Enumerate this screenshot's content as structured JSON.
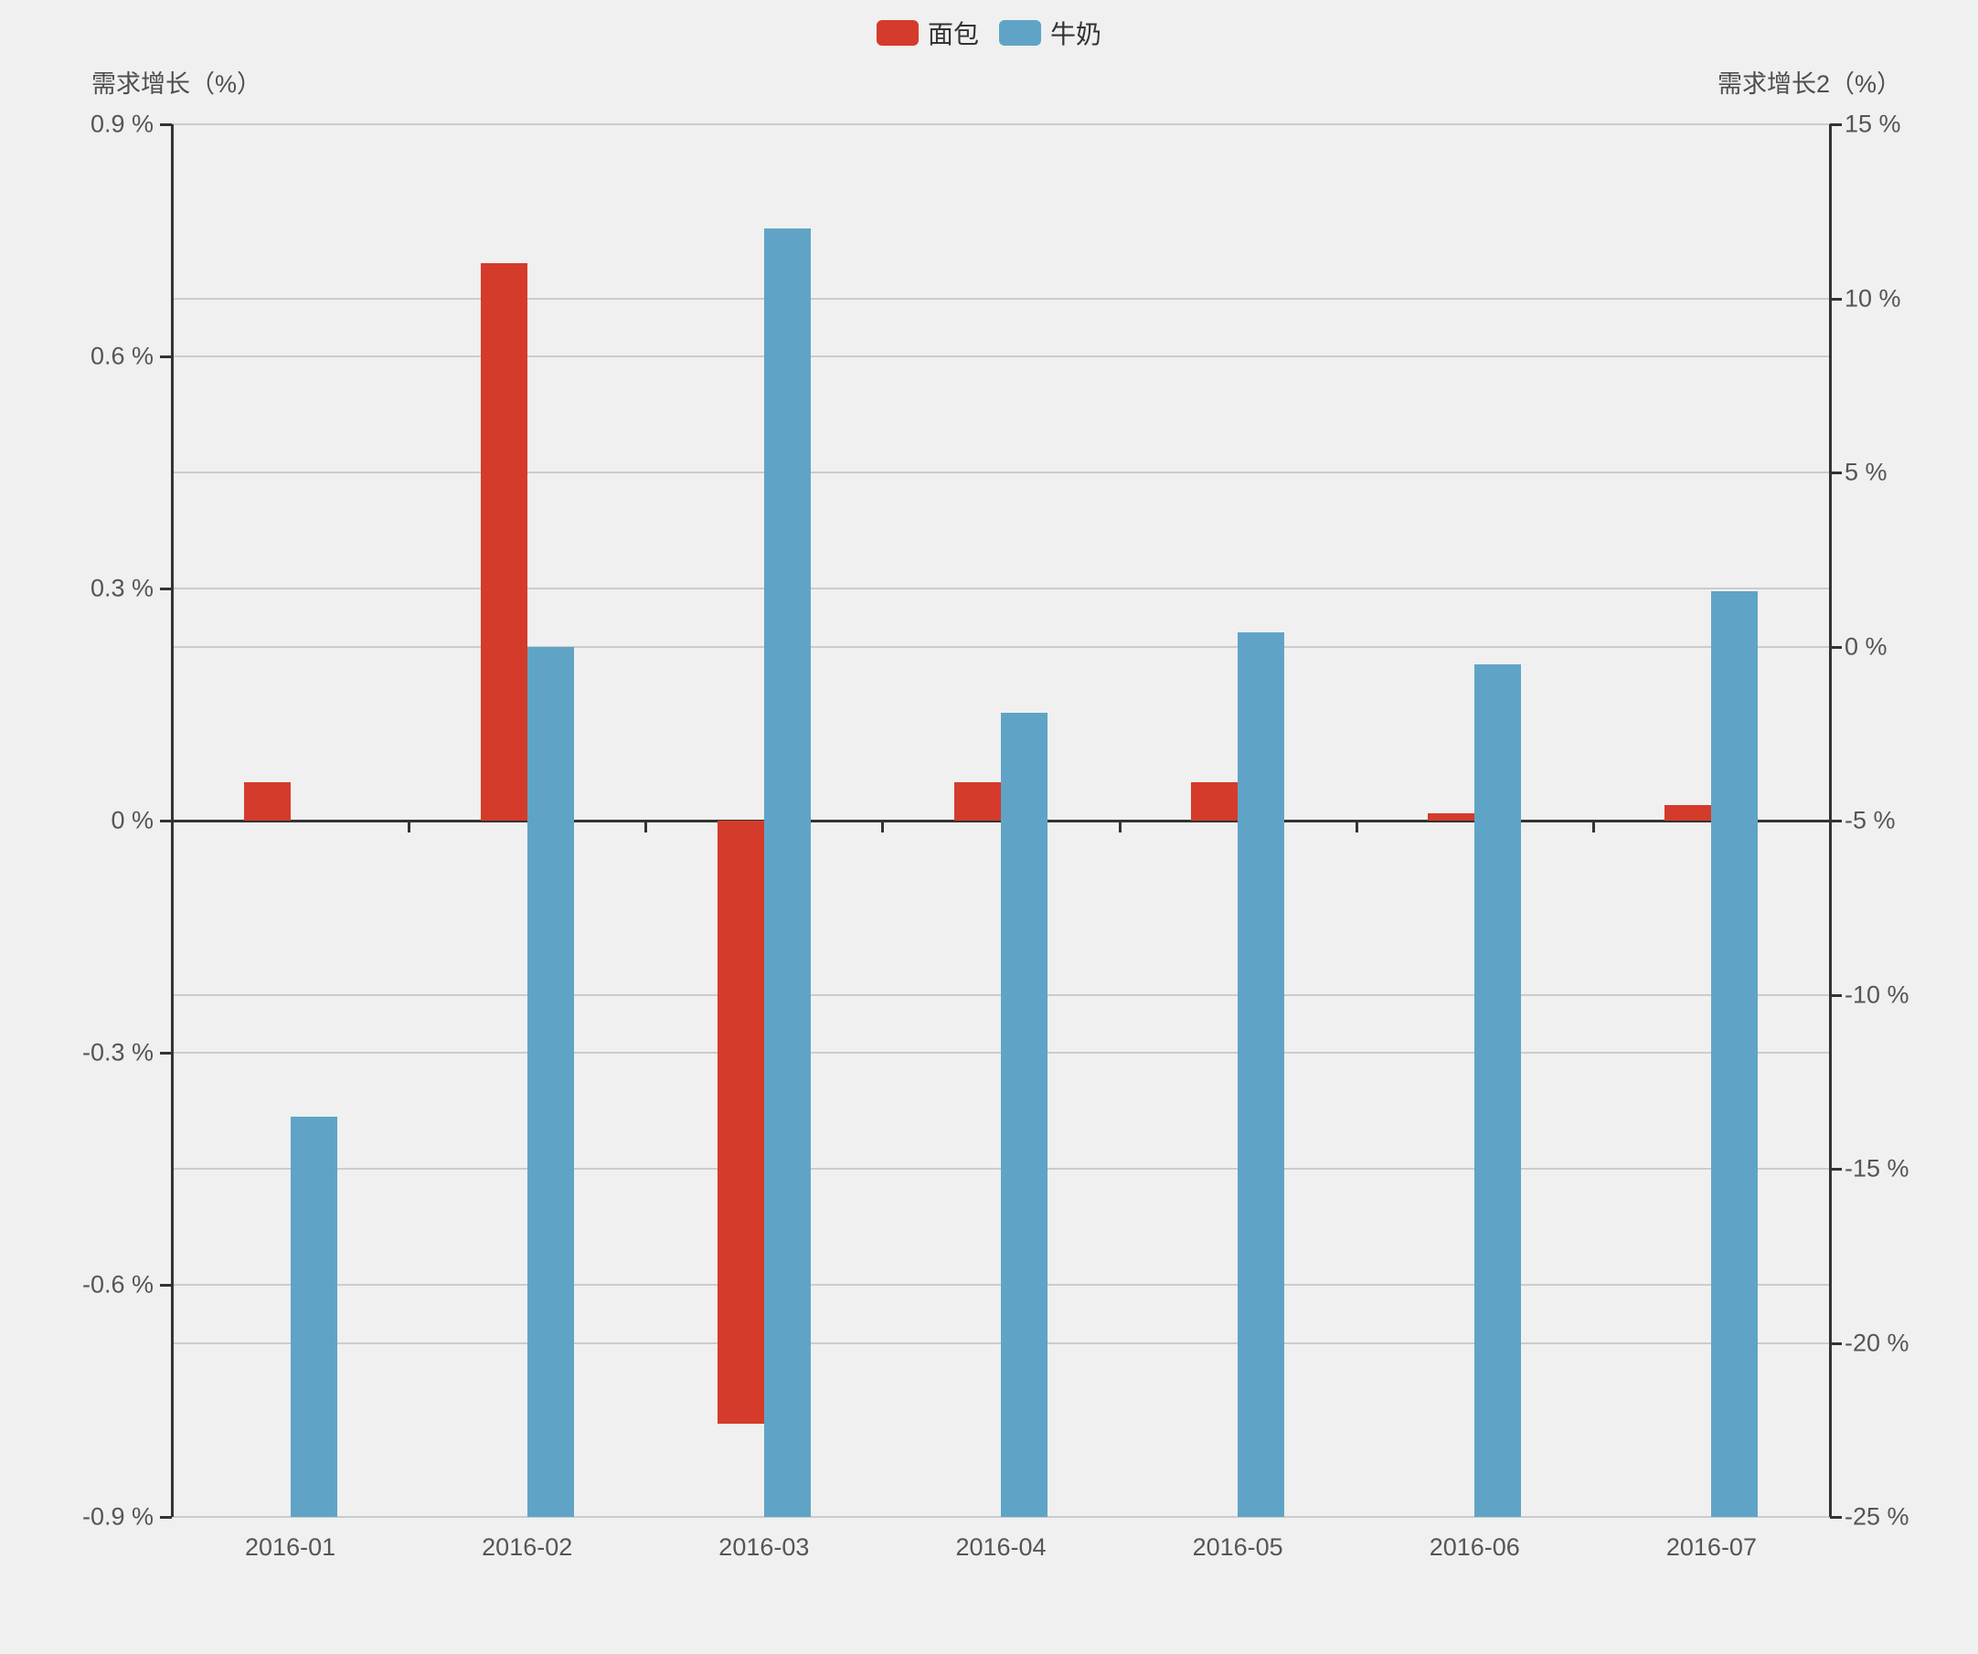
{
  "chart_data": {
    "type": "bar",
    "title": "",
    "categories": [
      "2016-01",
      "2016-02",
      "2016-03",
      "2016-04",
      "2016-05",
      "2016-06",
      "2016-07"
    ],
    "series": [
      {
        "name": "面包",
        "axis": "left",
        "color": "#d43b2a",
        "bar_anchor": "zero",
        "values": [
          0.05,
          0.72,
          -0.78,
          0.05,
          0.05,
          0.01,
          0.02
        ]
      },
      {
        "name": "牛奶",
        "axis": "right",
        "color": "#5fa4c6",
        "bar_anchor": "axis_min",
        "values": [
          -13.5,
          0,
          12,
          -1.9,
          0.4,
          -0.5,
          1.6
        ]
      }
    ],
    "left_axis": {
      "name": "需求增长（%）",
      "min": -0.9,
      "max": 0.9,
      "step": 0.3,
      "unit": "%",
      "labels": [
        "0.9 %",
        "0.6 %",
        "0.3 %",
        "0 %",
        "-0.3 %",
        "-0.6 %",
        "-0.9 %"
      ]
    },
    "right_axis": {
      "name": "需求增长2（%）",
      "min": -25,
      "max": 15,
      "step": 5,
      "unit": "%",
      "labels": [
        "15 %",
        "10 %",
        "5 %",
        "0 %",
        "-5 %",
        "-10 %",
        "-15 %",
        "-20 %",
        "-25 %"
      ]
    },
    "legend": [
      "面包",
      "牛奶"
    ],
    "legend_position": "top-center",
    "grid": true
  },
  "colors": {
    "background": "#f0f0f0",
    "gridline": "#cccccc",
    "axis_line": "#333333",
    "tick_label": "#555555",
    "axis_title": "#4e4e4e",
    "bread": "#d43b2a",
    "milk": "#5fa4c6"
  }
}
